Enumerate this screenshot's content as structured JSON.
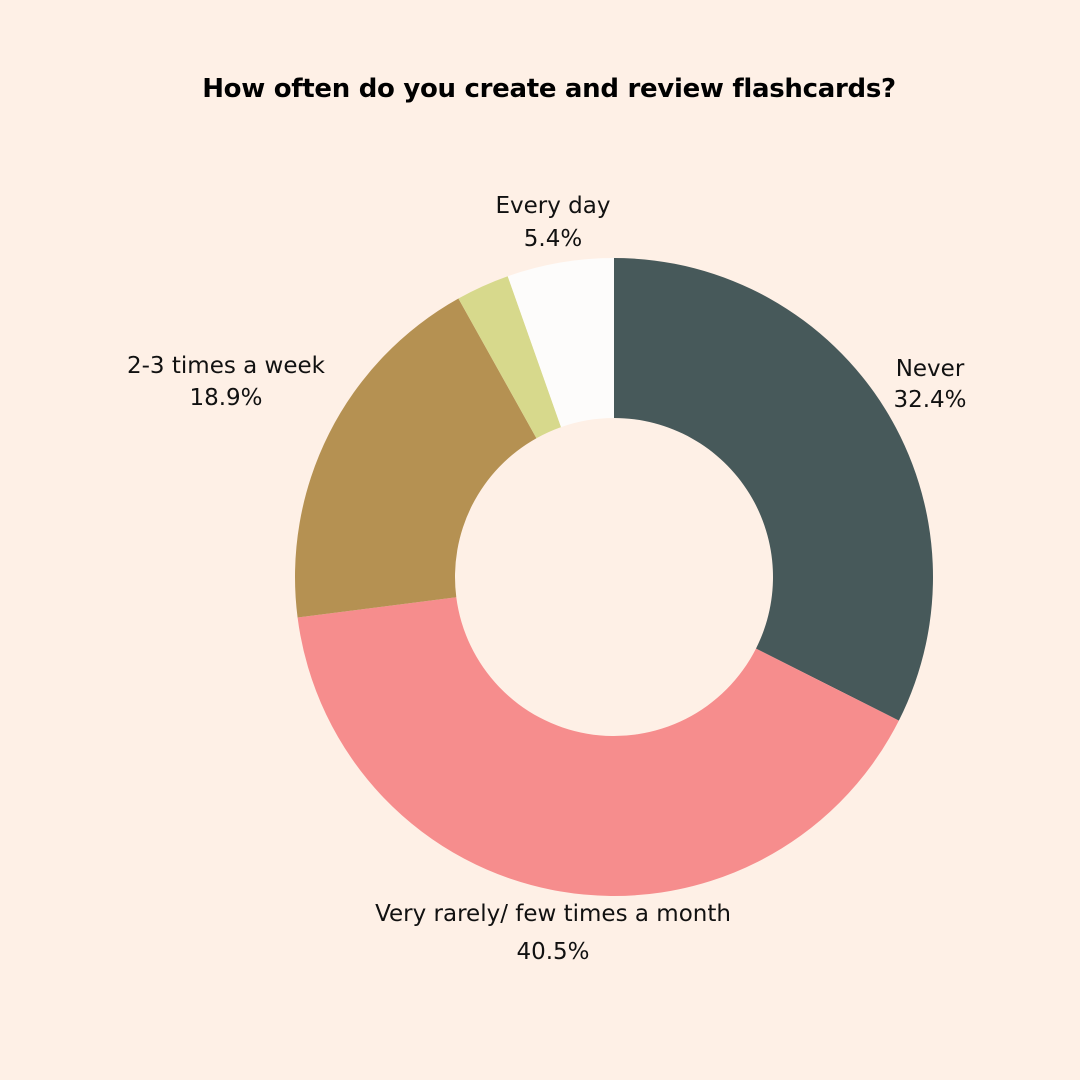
{
  "chart_data": {
    "type": "pie",
    "donut": true,
    "title": "How often do you create and review flashcards?",
    "legend": "none",
    "slices": [
      {
        "label": "Never",
        "value": 32.4,
        "display": "32.4%",
        "color": "#47595a"
      },
      {
        "label": "Very rarely/ few times a month",
        "value": 40.5,
        "display": "40.5%",
        "color": "#f68d8d"
      },
      {
        "label": "2-3 times a week",
        "value": 18.9,
        "display": "18.9%",
        "color": "#b59152"
      },
      {
        "label": "",
        "value": 2.7,
        "display": "",
        "color": "#d7d98c"
      },
      {
        "label": "Every day",
        "value": 5.4,
        "display": "5.4%",
        "color": "#fdfcfb"
      }
    ]
  }
}
